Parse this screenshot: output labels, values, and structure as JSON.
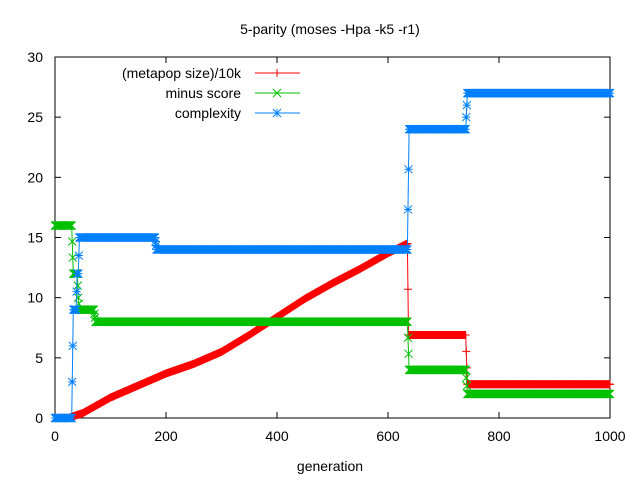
{
  "chart_data": {
    "type": "line",
    "title": "5-parity (moses -Hpa -k5 -r1)",
    "xlabel": "generation",
    "ylabel": "",
    "xlim": [
      0,
      1000
    ],
    "ylim": [
      0,
      30
    ],
    "xticks": [
      "0",
      "200",
      "400",
      "600",
      "800",
      "1000"
    ],
    "yticks": [
      "0",
      "5",
      "10",
      "15",
      "20",
      "25",
      "30"
    ],
    "grid": false,
    "legend": "top-left",
    "series": [
      {
        "name": "(metapop size)/10k",
        "color": "#ff0000",
        "marker": "plus",
        "points": [
          [
            0,
            0
          ],
          [
            25,
            0
          ],
          [
            30,
            0.1
          ],
          [
            50,
            0.4
          ],
          [
            100,
            1.7
          ],
          [
            150,
            2.7
          ],
          [
            200,
            3.7
          ],
          [
            250,
            4.5
          ],
          [
            300,
            5.5
          ],
          [
            350,
            6.9
          ],
          [
            400,
            8.4
          ],
          [
            450,
            9.9
          ],
          [
            500,
            11.2
          ],
          [
            550,
            12.4
          ],
          [
            600,
            13.7
          ],
          [
            635,
            14.5
          ],
          [
            637,
            6.9
          ],
          [
            740,
            6.9
          ],
          [
            743,
            2.8
          ],
          [
            1000,
            2.8
          ]
        ]
      },
      {
        "name": "minus score",
        "color": "#00c000",
        "marker": "cross",
        "points": [
          [
            0,
            16
          ],
          [
            30,
            16
          ],
          [
            33,
            12
          ],
          [
            40,
            12
          ],
          [
            42,
            10
          ],
          [
            44,
            9
          ],
          [
            70,
            9
          ],
          [
            73,
            8
          ],
          [
            635,
            8
          ],
          [
            638,
            4
          ],
          [
            740,
            4
          ],
          [
            743,
            2
          ],
          [
            1000,
            2
          ]
        ]
      },
      {
        "name": "complexity",
        "color": "#0080ff",
        "marker": "star",
        "points": [
          [
            0,
            0
          ],
          [
            30,
            0
          ],
          [
            33,
            9
          ],
          [
            38,
            9
          ],
          [
            40,
            12
          ],
          [
            42,
            12
          ],
          [
            44,
            15
          ],
          [
            180,
            15
          ],
          [
            183,
            14
          ],
          [
            635,
            14
          ],
          [
            638,
            24
          ],
          [
            740,
            24
          ],
          [
            743,
            27
          ],
          [
            1000,
            27
          ]
        ]
      }
    ]
  }
}
